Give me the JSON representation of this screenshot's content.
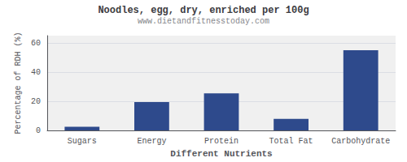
{
  "chart_data": {
    "type": "bar",
    "title": "Noodles, egg, dry, enriched per 100g",
    "subtitle": "www.dietandfitnesstoday.com",
    "xlabel": "Different Nutrients",
    "ylabel": "Percentage of RDH (%)",
    "categories": [
      "Sugars",
      "Energy",
      "Protein",
      "Total Fat",
      "Carbohydrate"
    ],
    "values": [
      2.5,
      19.5,
      25.5,
      8.0,
      55.0
    ],
    "color": "#2e4a8c",
    "ylim": [
      0,
      65
    ],
    "yticks": [
      0,
      20,
      40,
      60
    ],
    "grid": true
  }
}
